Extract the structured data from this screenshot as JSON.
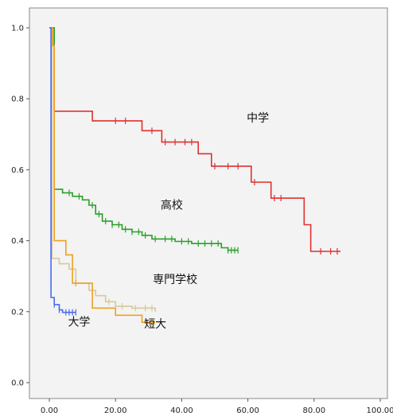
{
  "chart_data": {
    "type": "line",
    "title": "",
    "xlabel": "",
    "ylabel": "",
    "xlim": [
      0,
      100
    ],
    "ylim": [
      0,
      1.0
    ],
    "x_ticks": [
      0,
      20,
      40,
      60,
      80,
      100
    ],
    "x_tick_labels": [
      "0.00",
      "20.00",
      "40.00",
      "60.00",
      "80.00",
      "100.00"
    ],
    "y_ticks": [
      0,
      0.2,
      0.4,
      0.6,
      0.8,
      1.0
    ],
    "y_tick_labels": [
      "0.0",
      "0.2",
      "0.4",
      "0.6",
      "0.8",
      "1.0"
    ],
    "plot_background": "#f3f3f3",
    "grid": false,
    "series": [
      {
        "name": "中学",
        "color": "#e03030",
        "steps": [
          [
            0,
            1.0
          ],
          [
            1.5,
            1.0
          ],
          [
            1.5,
            0.765
          ],
          [
            13,
            0.765
          ],
          [
            13,
            0.738
          ],
          [
            28,
            0.738
          ],
          [
            28,
            0.71
          ],
          [
            34,
            0.71
          ],
          [
            34,
            0.678
          ],
          [
            45,
            0.678
          ],
          [
            45,
            0.645
          ],
          [
            49,
            0.645
          ],
          [
            49,
            0.61
          ],
          [
            61,
            0.61
          ],
          [
            61,
            0.565
          ],
          [
            67,
            0.565
          ],
          [
            67,
            0.52
          ],
          [
            77,
            0.52
          ],
          [
            77,
            0.445
          ],
          [
            79,
            0.445
          ],
          [
            79,
            0.37
          ],
          [
            88,
            0.37
          ]
        ],
        "censored": [
          20,
          23,
          31,
          35,
          38,
          41,
          43,
          50,
          54,
          57,
          62,
          68,
          70,
          82,
          85,
          87
        ]
      },
      {
        "name": "高校",
        "color": "#2aa02a",
        "steps": [
          [
            0,
            1.0
          ],
          [
            1.5,
            1.0
          ],
          [
            1.5,
            0.545
          ],
          [
            4,
            0.545
          ],
          [
            4,
            0.535
          ],
          [
            7,
            0.535
          ],
          [
            7,
            0.525
          ],
          [
            10,
            0.525
          ],
          [
            10,
            0.515
          ],
          [
            12,
            0.515
          ],
          [
            12,
            0.5
          ],
          [
            14,
            0.5
          ],
          [
            14,
            0.475
          ],
          [
            16,
            0.475
          ],
          [
            16,
            0.455
          ],
          [
            19,
            0.455
          ],
          [
            19,
            0.445
          ],
          [
            22,
            0.445
          ],
          [
            22,
            0.432
          ],
          [
            25,
            0.432
          ],
          [
            25,
            0.425
          ],
          [
            28,
            0.425
          ],
          [
            28,
            0.415
          ],
          [
            31,
            0.415
          ],
          [
            31,
            0.405
          ],
          [
            38,
            0.405
          ],
          [
            38,
            0.398
          ],
          [
            43,
            0.398
          ],
          [
            43,
            0.392
          ],
          [
            52,
            0.392
          ],
          [
            52,
            0.38
          ],
          [
            54,
            0.38
          ],
          [
            54,
            0.373
          ],
          [
            57,
            0.373
          ]
        ],
        "censored": [
          6,
          9,
          13,
          15,
          17,
          19,
          21,
          23,
          25,
          27,
          29,
          32,
          35,
          37,
          40,
          42,
          45,
          47,
          49,
          51,
          54,
          55,
          56,
          57
        ]
      },
      {
        "name": "専門学校",
        "color": "#d8c89a",
        "steps": [
          [
            0,
            1.0
          ],
          [
            0.8,
            1.0
          ],
          [
            0.8,
            0.35
          ],
          [
            3,
            0.35
          ],
          [
            3,
            0.335
          ],
          [
            6,
            0.335
          ],
          [
            6,
            0.32
          ],
          [
            8,
            0.32
          ],
          [
            8,
            0.28
          ],
          [
            12,
            0.28
          ],
          [
            12,
            0.26
          ],
          [
            14,
            0.26
          ],
          [
            14,
            0.245
          ],
          [
            17,
            0.245
          ],
          [
            17,
            0.228
          ],
          [
            20,
            0.228
          ],
          [
            20,
            0.215
          ],
          [
            25,
            0.215
          ],
          [
            25,
            0.21
          ],
          [
            32,
            0.21
          ],
          [
            32,
            0.2
          ]
        ],
        "censored": [
          18,
          22,
          26,
          29,
          31
        ]
      },
      {
        "name": "短大",
        "color": "#f0a020",
        "steps": [
          [
            0,
            1.0
          ],
          [
            1.0,
            1.0
          ],
          [
            1.0,
            0.95
          ],
          [
            1.5,
            0.95
          ],
          [
            1.5,
            0.4
          ],
          [
            5,
            0.4
          ],
          [
            5,
            0.36
          ],
          [
            7,
            0.36
          ],
          [
            7,
            0.28
          ],
          [
            13,
            0.28
          ],
          [
            13,
            0.21
          ],
          [
            20,
            0.21
          ],
          [
            20,
            0.19
          ],
          [
            28,
            0.19
          ],
          [
            28,
            0.17
          ],
          [
            32,
            0.17
          ]
        ],
        "censored": [
          8,
          31
        ]
      },
      {
        "name": "大学",
        "color": "#4a6aee",
        "steps": [
          [
            0,
            1.0
          ],
          [
            0.5,
            1.0
          ],
          [
            0.5,
            0.24
          ],
          [
            1.5,
            0.24
          ],
          [
            1.5,
            0.22
          ],
          [
            3,
            0.22
          ],
          [
            3,
            0.205
          ],
          [
            4,
            0.205
          ],
          [
            4,
            0.198
          ],
          [
            8,
            0.198
          ]
        ],
        "censored": [
          1.5,
          3,
          5,
          6,
          7,
          8
        ]
      }
    ],
    "annotations": [
      {
        "text": "中学",
        "x": 63,
        "y": 0.735
      },
      {
        "text": "高校",
        "x": 37,
        "y": 0.49
      },
      {
        "text": "専門学校",
        "x": 38,
        "y": 0.28
      },
      {
        "text": "大学",
        "x": 9,
        "y": 0.16
      },
      {
        "text": "短大",
        "x": 32,
        "y": 0.155
      }
    ]
  }
}
